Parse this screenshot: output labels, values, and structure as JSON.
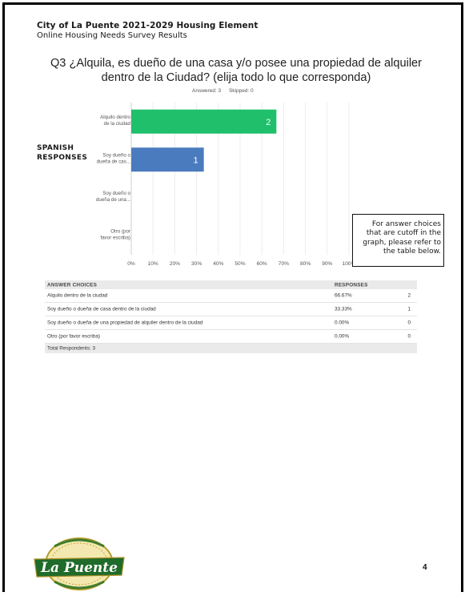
{
  "header": {
    "title": "City of La Puente 2021-2029 Housing Element",
    "subtitle": "Online Housing Needs Survey Results"
  },
  "question": "Q3 ¿Alquila, es dueño de una casa y/o posee una propiedad de alquiler dentro de la Ciudad? (elija todo lo que corresponda)",
  "answered": "Answered: 3",
  "skipped": "Skipped: 0",
  "side_label": {
    "line1": "SPANISH",
    "line2": "RESPONSES"
  },
  "callout": "For answer choices that are cutoff in the graph, please refer to the table below.",
  "chart_data": {
    "type": "bar",
    "orientation": "horizontal",
    "categories": [
      [
        "Alquilo dentro",
        "de la ciudad"
      ],
      [
        "Soy dueño o",
        "dueña de cas..."
      ],
      [
        "Soy dueño o",
        "dueña de una..."
      ],
      [
        "Otro (por",
        "favor escriba)"
      ]
    ],
    "values": [
      66.67,
      33.33,
      0,
      0
    ],
    "data_labels": [
      "2",
      "1",
      "",
      ""
    ],
    "colors": [
      "#1fbf6b",
      "#4a7bbf"
    ],
    "x_ticks": [
      "0%",
      "10%",
      "20%",
      "30%",
      "40%",
      "50%",
      "60%",
      "70%",
      "80%",
      "90%",
      "100%"
    ],
    "xlim": [
      0,
      100
    ],
    "grid": true
  },
  "table": {
    "headers": {
      "choice": "ANSWER CHOICES",
      "responses": "RESPONSES"
    },
    "rows": [
      {
        "choice": "Alquilo dentro de la ciudad",
        "percent": "66.67%",
        "count": "2"
      },
      {
        "choice": "Soy dueño o dueña de casa dentro de la ciudad",
        "percent": "33.33%",
        "count": "1"
      },
      {
        "choice": "Soy dueño o dueña de una propiedad de alquiler dentro de la ciudad",
        "percent": "0.00%",
        "count": "0"
      },
      {
        "choice": "Otro (por favor escriba)",
        "percent": "0.00%",
        "count": "0"
      }
    ],
    "footer": "Total Respondents: 3"
  },
  "logo_text": "La Puente",
  "page_number": "4"
}
